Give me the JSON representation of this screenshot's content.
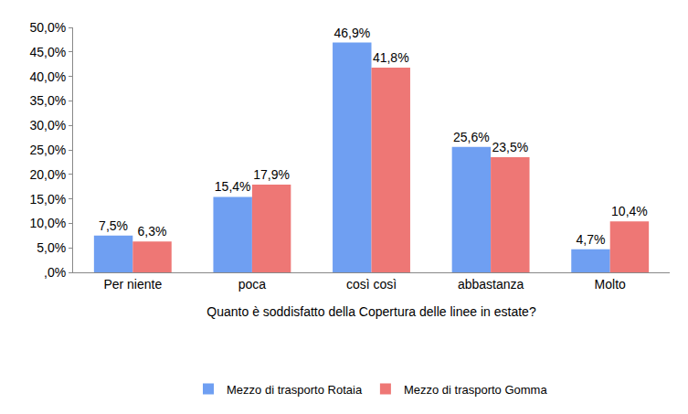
{
  "chart_data": {
    "type": "bar",
    "x_label": "Quanto è soddisfatto della Copertura delle linee in estate?",
    "categories": [
      "Per niente",
      "poca",
      "così così",
      "abbastanza",
      "Molto"
    ],
    "series": [
      {
        "name": "Mezzo di trasporto Rotaia",
        "color": "#6f9ff2",
        "values": [
          7.5,
          15.4,
          46.9,
          25.6,
          4.7
        ],
        "value_labels": [
          "7,5%",
          "15,4%",
          "46,9%",
          "25,6%",
          "4,7%"
        ]
      },
      {
        "name": "Mezzo di trasporto Gomma",
        "color": "#ee7775",
        "values": [
          6.3,
          17.9,
          41.8,
          23.5,
          10.4
        ],
        "value_labels": [
          "6,3%",
          "17,9%",
          "41,8%",
          "23,5%",
          "10,4%"
        ]
      }
    ],
    "ylim": [
      0,
      50
    ],
    "yticks": [
      {
        "value": 0,
        "label": ",0%"
      },
      {
        "value": 5,
        "label": "5,0%"
      },
      {
        "value": 10,
        "label": "10,0%"
      },
      {
        "value": 15,
        "label": "15,0%"
      },
      {
        "value": 20,
        "label": "20,0%"
      },
      {
        "value": 25,
        "label": "25,0%"
      },
      {
        "value": 30,
        "label": "30,0%"
      },
      {
        "value": 35,
        "label": "35,0%"
      },
      {
        "value": 40,
        "label": "40,0%"
      },
      {
        "value": 45,
        "label": "45,0%"
      },
      {
        "value": 50,
        "label": "50,0%"
      }
    ],
    "grid": false,
    "legend": "bottom",
    "data_labels": true
  }
}
